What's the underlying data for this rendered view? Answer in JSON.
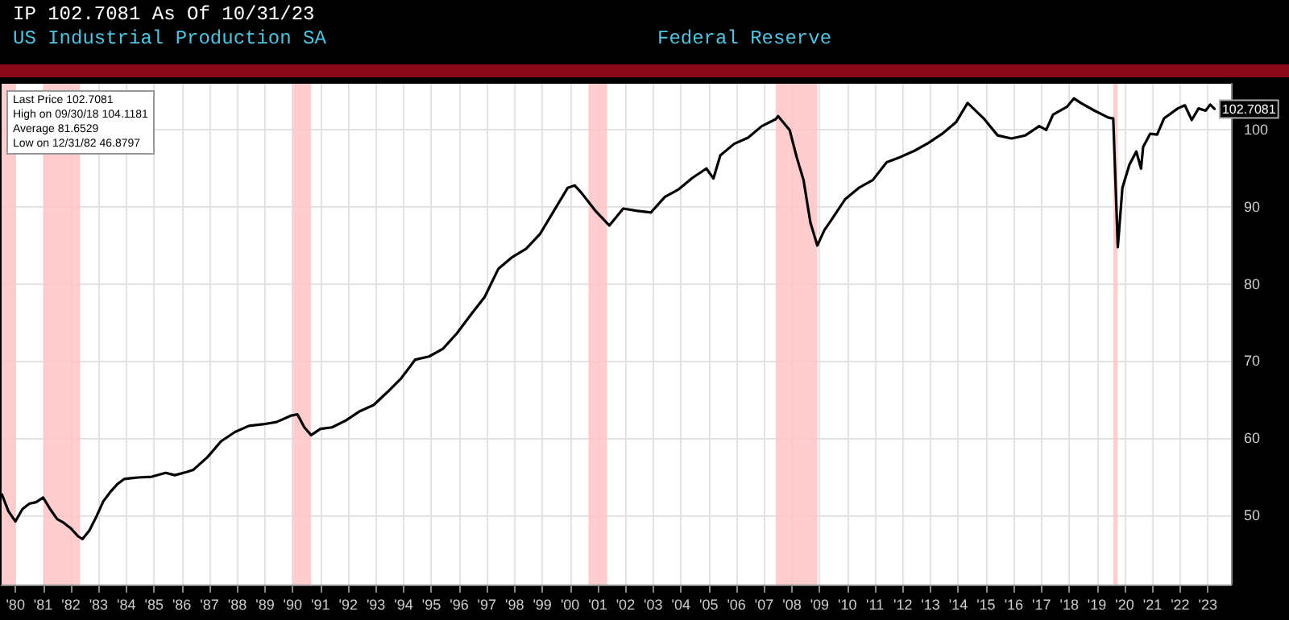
{
  "chart_data": {
    "type": "line",
    "title": "US Industrial Production SA",
    "subtitle": "Federal Reserve",
    "annotations": [
      "IP 102.7081 As Of 10/31/23",
      "Last Price 102.7081",
      "High on 09/30/18 104.1181",
      "Average 81.6529",
      "Low on 12/31/82 46.8797",
      {
        "text": "102.7081",
        "x": "2023-10",
        "y": 102.7
      }
    ],
    "x": [
      "1980-01",
      "1980-04",
      "1980-07",
      "1980-10",
      "1981-01",
      "1981-04",
      "1981-07",
      "1981-10",
      "1982-01",
      "1982-04",
      "1982-07",
      "1982-10",
      "1982-12",
      "1983-03",
      "1983-06",
      "1983-09",
      "1983-12",
      "1984-03",
      "1984-06",
      "1984-09",
      "1984-12",
      "1985-06",
      "1985-12",
      "1986-04",
      "1986-09",
      "1986-12",
      "1987-06",
      "1987-12",
      "1988-06",
      "1988-12",
      "1989-06",
      "1989-12",
      "1990-06",
      "1990-09",
      "1990-12",
      "1991-03",
      "1991-07",
      "1991-12",
      "1992-06",
      "1992-12",
      "1993-06",
      "1993-12",
      "1994-06",
      "1994-12",
      "1995-06",
      "1995-12",
      "1996-06",
      "1996-12",
      "1997-06",
      "1997-12",
      "1998-06",
      "1998-12",
      "1999-06",
      "1999-12",
      "2000-06",
      "2000-09",
      "2000-12",
      "2001-06",
      "2001-12",
      "2002-06",
      "2002-12",
      "2003-06",
      "2003-12",
      "2004-06",
      "2004-12",
      "2005-06",
      "2005-09",
      "2005-12",
      "2006-06",
      "2006-12",
      "2007-06",
      "2007-12",
      "2008-01",
      "2008-06",
      "2008-09",
      "2008-12",
      "2009-03",
      "2009-06",
      "2009-09",
      "2009-12",
      "2010-06",
      "2010-12",
      "2011-06",
      "2011-12",
      "2012-06",
      "2012-12",
      "2013-06",
      "2013-12",
      "2014-06",
      "2014-11",
      "2015-06",
      "2015-12",
      "2016-06",
      "2016-12",
      "2017-06",
      "2017-09",
      "2017-12",
      "2018-06",
      "2018-09",
      "2018-12",
      "2019-06",
      "2019-12",
      "2020-02",
      "2020-04",
      "2020-06",
      "2020-09",
      "2020-12",
      "2021-02",
      "2021-03",
      "2021-06",
      "2021-09",
      "2021-12",
      "2022-06",
      "2022-09",
      "2022-12",
      "2023-03",
      "2023-06",
      "2023-08",
      "2023-10"
    ],
    "series": [
      {
        "color": "#000000",
        "values": [
          52.8,
          50.5,
          49.2,
          50.8,
          51.5,
          51.7,
          52.3,
          50.8,
          49.5,
          49.0,
          48.3,
          47.3,
          46.9,
          48.0,
          49.8,
          51.8,
          53.0,
          54.0,
          54.7,
          54.8,
          54.9,
          55.0,
          55.5,
          55.2,
          55.6,
          55.9,
          57.5,
          59.6,
          60.8,
          61.6,
          61.8,
          62.1,
          62.9,
          63.1,
          61.4,
          60.4,
          61.2,
          61.4,
          62.3,
          63.5,
          64.3,
          66.0,
          67.8,
          70.2,
          70.6,
          71.6,
          73.6,
          76.0,
          78.3,
          82.0,
          83.5,
          84.6,
          86.5,
          89.5,
          92.5,
          92.8,
          91.8,
          89.5,
          87.6,
          89.8,
          89.5,
          89.3,
          91.3,
          92.3,
          93.8,
          95.0,
          93.7,
          96.7,
          98.2,
          99.0,
          100.5,
          101.4,
          101.8,
          100.0,
          96.5,
          93.5,
          88.0,
          85.0,
          87.0,
          88.3,
          91.0,
          92.5,
          93.5,
          95.8,
          96.5,
          97.3,
          98.3,
          99.5,
          101.0,
          103.5,
          101.5,
          99.3,
          98.9,
          99.3,
          100.5,
          100.0,
          102.0,
          103.0,
          104.1,
          103.5,
          102.5,
          101.6,
          101.5,
          84.8,
          92.5,
          95.5,
          97.2,
          95.0,
          97.8,
          99.5,
          99.4,
          101.5,
          102.8,
          103.2,
          101.3,
          102.8,
          102.5,
          103.3,
          102.7
        ]
      }
    ],
    "xlim": [
      "1980-01",
      "2024-05"
    ],
    "xticks": [
      {
        "value": "1980-07",
        "label": "'80"
      },
      {
        "value": "1981-07",
        "label": "'81"
      },
      {
        "value": "1982-07",
        "label": "'82"
      },
      {
        "value": "1983-07",
        "label": "'83"
      },
      {
        "value": "1984-07",
        "label": "'84"
      },
      {
        "value": "1985-07",
        "label": "'85"
      },
      {
        "value": "1986-07",
        "label": "'86"
      },
      {
        "value": "1987-07",
        "label": "'87"
      },
      {
        "value": "1988-07",
        "label": "'88"
      },
      {
        "value": "1989-07",
        "label": "'89"
      },
      {
        "value": "1990-07",
        "label": "'90"
      },
      {
        "value": "1991-07",
        "label": "'91"
      },
      {
        "value": "1992-07",
        "label": "'92"
      },
      {
        "value": "1993-07",
        "label": "'93"
      },
      {
        "value": "1994-07",
        "label": "'94"
      },
      {
        "value": "1995-07",
        "label": "'95"
      },
      {
        "value": "1996-07",
        "label": "'96"
      },
      {
        "value": "1997-07",
        "label": "'97"
      },
      {
        "value": "1998-07",
        "label": "'98"
      },
      {
        "value": "1999-07",
        "label": "'99"
      },
      {
        "value": "2000-07",
        "label": "'00"
      },
      {
        "value": "2001-07",
        "label": "'01"
      },
      {
        "value": "2002-07",
        "label": "'02"
      },
      {
        "value": "2003-07",
        "label": "'03"
      },
      {
        "value": "2004-07",
        "label": "'04"
      },
      {
        "value": "2005-07",
        "label": "'05"
      },
      {
        "value": "2006-07",
        "label": "'06"
      },
      {
        "value": "2007-07",
        "label": "'07"
      },
      {
        "value": "2008-07",
        "label": "'08"
      },
      {
        "value": "2009-07",
        "label": "'09"
      },
      {
        "value": "2010-07",
        "label": "'10"
      },
      {
        "value": "2011-07",
        "label": "'11"
      },
      {
        "value": "2012-07",
        "label": "'12"
      },
      {
        "value": "2013-07",
        "label": "'13"
      },
      {
        "value": "2014-07",
        "label": "'14"
      },
      {
        "value": "2015-07",
        "label": "'15"
      },
      {
        "value": "2016-07",
        "label": "'16"
      },
      {
        "value": "2017-07",
        "label": "'17"
      },
      {
        "value": "2018-07",
        "label": "'18"
      },
      {
        "value": "2019-07",
        "label": "'19"
      },
      {
        "value": "2020-07",
        "label": "'20"
      },
      {
        "value": "2021-07",
        "label": "'21"
      },
      {
        "value": "2022-07",
        "label": "'22"
      },
      {
        "value": "2023-07",
        "label": "'23"
      }
    ],
    "ylim": [
      41,
      106
    ],
    "yticks": [
      50,
      60,
      70,
      80,
      90,
      100
    ],
    "bands": [
      {
        "axis": "x",
        "from": "1980-01",
        "to": "1980-07",
        "color": "#ffc4c4"
      },
      {
        "axis": "x",
        "from": "1981-07",
        "to": "1982-11",
        "color": "#ffc4c4"
      },
      {
        "axis": "x",
        "from": "1990-07",
        "to": "1991-03",
        "color": "#ffc4c4"
      },
      {
        "axis": "x",
        "from": "2001-03",
        "to": "2001-11",
        "color": "#ffc4c4"
      },
      {
        "axis": "x",
        "from": "2007-12",
        "to": "2009-06",
        "color": "#ffc4c4"
      },
      {
        "axis": "x",
        "from": "2020-02",
        "to": "2020-04",
        "color": "#ffc4c4"
      }
    ],
    "grid": true,
    "line_style": "solid",
    "marker": "none"
  }
}
